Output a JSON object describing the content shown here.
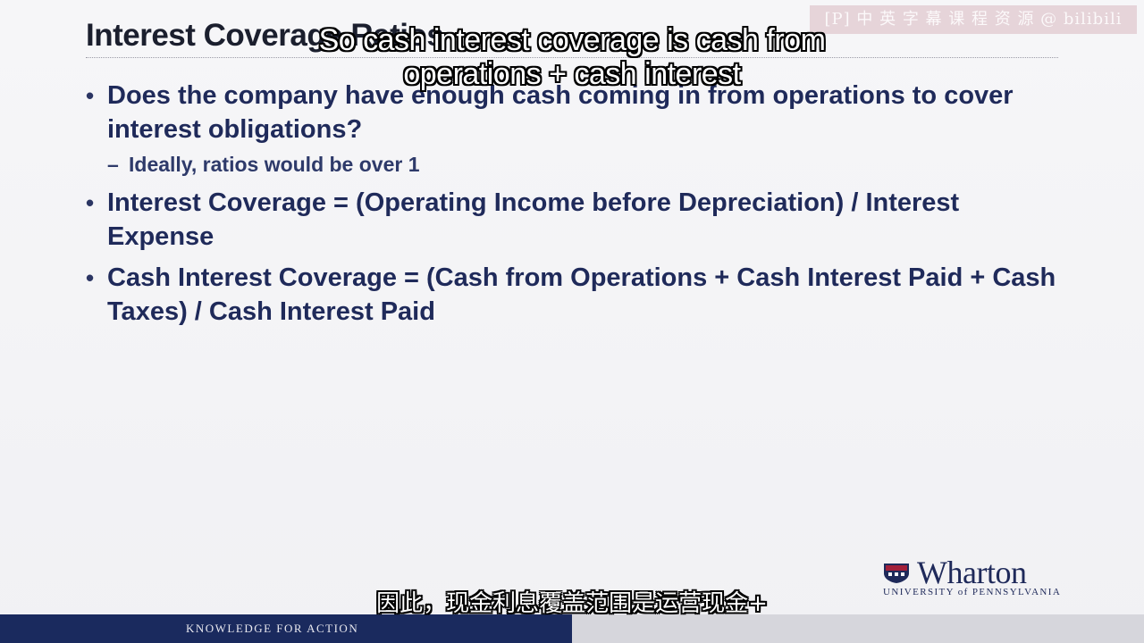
{
  "slide": {
    "title": "Interest Coverage Ratios",
    "bullets": [
      "Does the company have enough cash coming in from operations to cover interest obligations?",
      "Interest Coverage = (Operating Income before Depreciation) / Interest Expense",
      "Cash Interest Coverage = (Cash from Operations + Cash Interest Paid + Cash Taxes) / Cash Interest Paid"
    ],
    "sub_bullet": "Ideally, ratios would be over 1"
  },
  "logo": {
    "word": "Wharton",
    "subtitle": "UNIVERSITY of PENNSYLVANIA",
    "colors": {
      "navy": "#1f2a5a",
      "red": "#a3203a"
    }
  },
  "footer": {
    "tagline": "KNOWLEDGE FOR ACTION",
    "colors": {
      "navy": "#1a2a5e",
      "grey": "#d6d6dc"
    }
  },
  "overlays": {
    "watermark": "[P] 中 英 字 幕 课 程 资 源 @ bilibili",
    "caption_en": "So cash interest coverage is cash from operations + cash interest",
    "caption_zh": "因此，现金利息覆盖范围是运营现金+"
  }
}
